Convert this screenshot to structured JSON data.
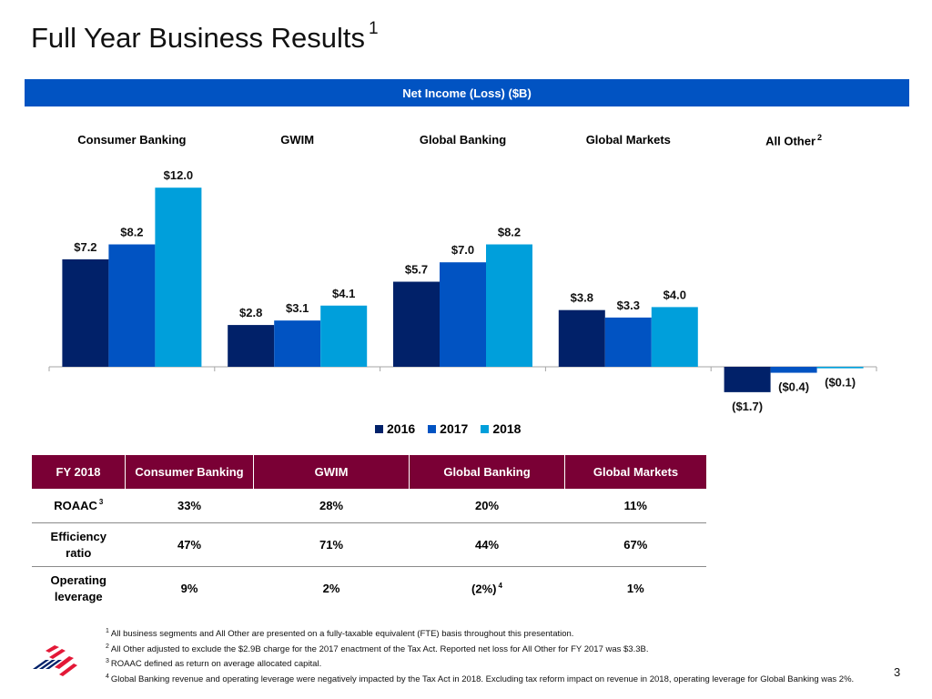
{
  "slide": {
    "title": "Full Year Business Results",
    "title_footnote": "1",
    "page_number": "3"
  },
  "banner": {
    "label": "Net Income (Loss) ($B)"
  },
  "colors": {
    "banner_blue": "#0153c2",
    "series_2016": "#012169",
    "series_2017": "#0153c2",
    "series_2018": "#009fdb",
    "table_header": "#7a0035"
  },
  "chart_data": {
    "type": "bar",
    "title": "Net Income (Loss) ($B)",
    "xlabel": "",
    "ylabel": "",
    "categories": [
      "Consumer Banking",
      "GWIM",
      "Global Banking",
      "Global Markets",
      "All Other"
    ],
    "category_footnotes": [
      "",
      "",
      "",
      "",
      "2"
    ],
    "series": [
      {
        "name": "2016",
        "values": [
          7.2,
          2.8,
          5.7,
          3.8,
          -1.7
        ],
        "labels": [
          "$7.2",
          "$2.8",
          "$5.7",
          "$3.8",
          "($1.7)"
        ]
      },
      {
        "name": "2017",
        "values": [
          8.2,
          3.1,
          7.0,
          3.3,
          -0.4
        ],
        "labels": [
          "$8.2",
          "$3.1",
          "$7.0",
          "$3.3",
          "($0.4)"
        ]
      },
      {
        "name": "2018",
        "values": [
          12.0,
          4.1,
          8.2,
          4.0,
          -0.1
        ],
        "labels": [
          "$12.0",
          "$4.1",
          "$8.2",
          "$4.0",
          "($0.1)"
        ]
      }
    ],
    "ylim": [
      -2,
      12
    ],
    "grid": false,
    "legend": "bottom-center"
  },
  "table": {
    "headers": [
      "FY 2018",
      "Consumer Banking",
      "GWIM",
      "Global Banking",
      "Global Markets"
    ],
    "rows": [
      {
        "label": "ROAAC",
        "label_footnote": "3",
        "values": [
          "33%",
          "28%",
          "20%",
          "11%"
        ],
        "value_footnotes": [
          "",
          "",
          "",
          ""
        ]
      },
      {
        "label": "Efficiency ratio",
        "label_footnote": "",
        "values": [
          "47%",
          "71%",
          "44%",
          "67%"
        ],
        "value_footnotes": [
          "",
          "",
          "",
          ""
        ]
      },
      {
        "label": "Operating leverage",
        "label_footnote": "",
        "values": [
          "9%",
          "2%",
          "(2%)",
          "1%"
        ],
        "value_footnotes": [
          "",
          "",
          "4",
          ""
        ]
      }
    ]
  },
  "footnotes": [
    {
      "num": "1",
      "text": "All business segments and All Other are presented on a fully-taxable equivalent (FTE) basis throughout this presentation."
    },
    {
      "num": "2",
      "text": "All Other adjusted to exclude the $2.9B charge for the 2017 enactment of the Tax Act. Reported net loss for All Other for FY 2017 was $3.3B."
    },
    {
      "num": "3",
      "text": "ROAAC defined as return on average allocated capital."
    },
    {
      "num": "4",
      "text": "Global Banking revenue and operating leverage were negatively impacted by the Tax Act in 2018. Excluding tax reform impact on revenue in 2018, operating leverage for Global Banking was 2%."
    }
  ],
  "logo": {
    "icon": "bank-flag-logo"
  }
}
